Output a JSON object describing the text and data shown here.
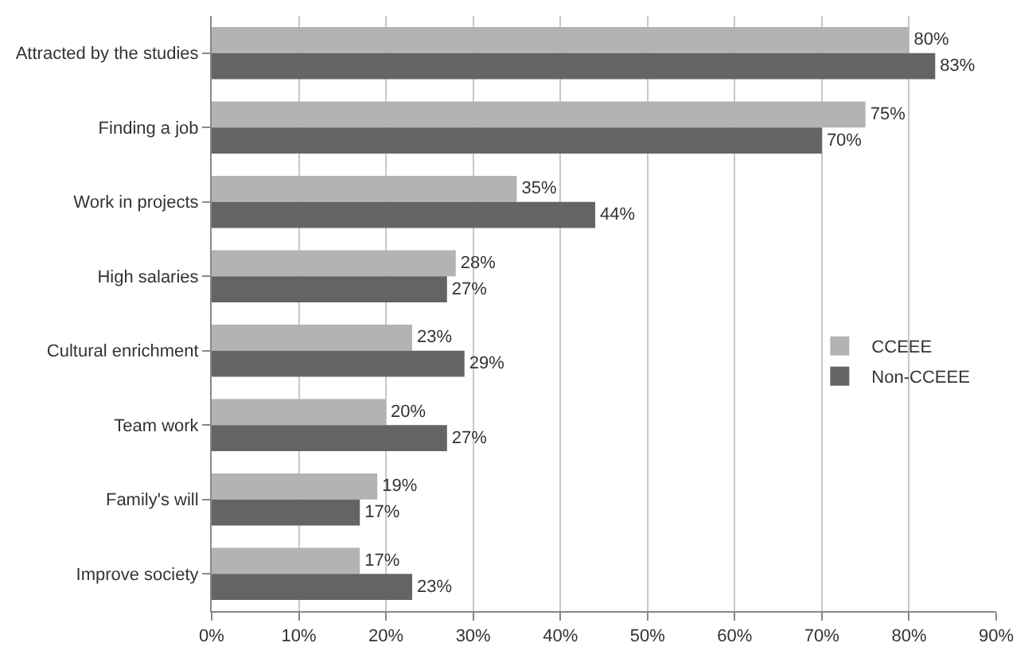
{
  "chart_data": {
    "type": "bar",
    "orientation": "horizontal",
    "categories": [
      "Attracted by the studies",
      "Finding a job",
      "Work in projects",
      "High salaries",
      "Cultural enrichment",
      "Team work",
      "Family's will",
      "Improve society"
    ],
    "series": [
      {
        "name": "CCEEE",
        "color": "#b3b3b3",
        "values": [
          80,
          75,
          35,
          28,
          23,
          20,
          19,
          17
        ],
        "value_labels": [
          "80%",
          "75%",
          "35%",
          "28%",
          "23%",
          "20%",
          "19%",
          "17%"
        ]
      },
      {
        "name": "Non-CCEEE",
        "color": "#646464",
        "values": [
          83,
          70,
          44,
          27,
          29,
          27,
          17,
          23
        ],
        "value_labels": [
          "83%",
          "70%",
          "44%",
          "27%",
          "29%",
          "27%",
          "17%",
          "23%"
        ]
      }
    ],
    "xlim": [
      0,
      90
    ],
    "xticks": [
      {
        "value": 0,
        "label": "0%"
      },
      {
        "value": 10,
        "label": "10%"
      },
      {
        "value": 20,
        "label": "20%"
      },
      {
        "value": 30,
        "label": "30%"
      },
      {
        "value": 40,
        "label": "40%"
      },
      {
        "value": 50,
        "label": "50%"
      },
      {
        "value": 60,
        "label": "60%"
      },
      {
        "value": 70,
        "label": "70%"
      },
      {
        "value": 80,
        "label": "80%"
      },
      {
        "value": 90,
        "label": "90%"
      }
    ],
    "grid": "x",
    "legend": "right"
  }
}
